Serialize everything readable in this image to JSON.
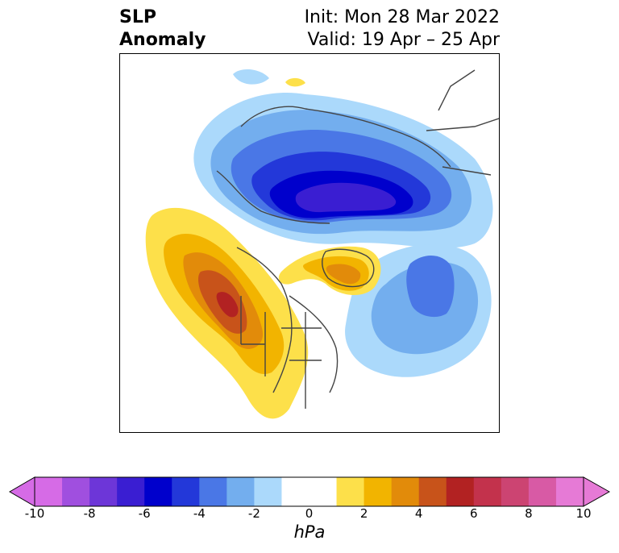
{
  "title": {
    "left_line1": "SLP",
    "left_line2": "Anomaly",
    "right_line1": "Init: Mon 28 Mar 2022",
    "right_line2": "Valid: 19 Apr – 25 Apr"
  },
  "colorbar": {
    "unit_label": "hPa",
    "ticks": [
      "-10",
      "-8",
      "-6",
      "-4",
      "-2",
      "0",
      "2",
      "4",
      "6",
      "8",
      "10"
    ],
    "min": -10,
    "max": 10,
    "step": 1,
    "colors": [
      "#d66be6",
      "#a04fdf",
      "#6d36d8",
      "#3a1ed2",
      "#0000cc",
      "#2338d9",
      "#4a77e6",
      "#73aeee",
      "#abd9fb",
      "#ffffff",
      "#ffffff",
      "#fde04a",
      "#f2b400",
      "#e28b0a",
      "#c8531a",
      "#b22222",
      "#c3324c",
      "#cc4472",
      "#d85aa5",
      "#e67ad6"
    ]
  },
  "map": {
    "region": "Northern Hemisphere polar projection",
    "features": [
      {
        "name": "negative-anomaly-arctic",
        "sign": "negative",
        "peak": -6
      },
      {
        "name": "negative-anomaly-north-atlantic",
        "sign": "negative",
        "peak": -4
      },
      {
        "name": "positive-anomaly-northeast-pacific",
        "sign": "positive",
        "peak": 6
      },
      {
        "name": "positive-anomaly-greenland",
        "sign": "positive",
        "peak": 4
      }
    ]
  }
}
